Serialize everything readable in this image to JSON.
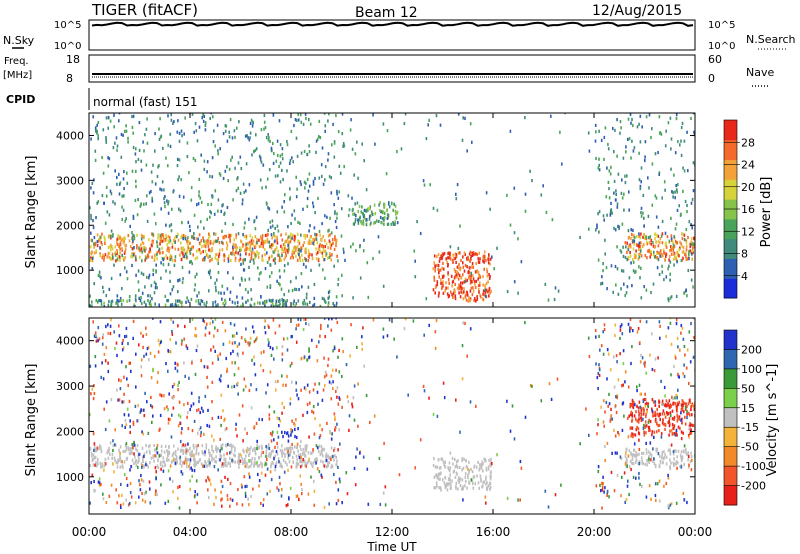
{
  "header": {
    "title": "TIGER (fitACF)",
    "beam": "Beam 12",
    "date": "12/Aug/2015"
  },
  "nsky": {
    "label": "N.Sky",
    "right_label": "N.Search",
    "ticks": [
      "10^5",
      "10^0"
    ],
    "right_ticks": [
      "10^5",
      "10^0"
    ]
  },
  "freq": {
    "label": "Freq.",
    "unit": "[MHz]",
    "right_label": "Nave",
    "ticks": [
      "18",
      "8"
    ],
    "right_ticks": [
      "60",
      "0"
    ]
  },
  "cpid": {
    "label": "CPID",
    "text": "normal (fast) 151"
  },
  "chart_data": [
    {
      "type": "heatmap",
      "name": "power",
      "x": [
        0,
        4,
        8,
        12,
        16,
        20,
        24
      ],
      "xticks": [
        "00:00",
        "04:00",
        "08:00",
        "12:00",
        "16:00",
        "20:00",
        "00:00"
      ],
      "xlabel": "Time UT",
      "ylabel": "Slant Range [km]",
      "ylim": [
        180,
        4500
      ],
      "yticks": [
        1000,
        2000,
        3000,
        4000
      ],
      "colorbar": {
        "label": "Power [dB]",
        "ticks": [
          4,
          8,
          12,
          16,
          20,
          24,
          28
        ],
        "range": [
          0,
          32
        ],
        "colors": [
          "#1a2dd8",
          "#2f5fb0",
          "#3f8a7a",
          "#4aa35a",
          "#86c34a",
          "#d6d23a",
          "#f3a23a",
          "#f36a2a",
          "#e8281a"
        ]
      },
      "features": [
        {
          "t": [
            0.0,
            9.8
          ],
          "r": [
            1200,
            1800
          ],
          "level": 24
        },
        {
          "t": [
            0.0,
            9.8
          ],
          "r": [
            180,
            320
          ],
          "level": 10
        },
        {
          "t": [
            13.6,
            15.9
          ],
          "r": [
            300,
            1400
          ],
          "level": 28
        },
        {
          "t": [
            21.2,
            24.0
          ],
          "r": [
            1200,
            1800
          ],
          "level": 24
        },
        {
          "t": [
            10.4,
            12.2
          ],
          "r": [
            2000,
            2500
          ],
          "level": 12
        }
      ]
    },
    {
      "type": "heatmap",
      "name": "velocity",
      "x": [
        0,
        4,
        8,
        12,
        16,
        20,
        24
      ],
      "xticks": [
        "00:00",
        "04:00",
        "08:00",
        "12:00",
        "16:00",
        "20:00",
        "00:00"
      ],
      "xlabel": "Time UT",
      "ylabel": "Slant Range [km]",
      "ylim": [
        180,
        4500
      ],
      "yticks": [
        1000,
        2000,
        3000,
        4000
      ],
      "colorbar": {
        "label": "Velocity [m s^-1]",
        "ticks": [
          "200",
          "100",
          "50",
          "15",
          "-15",
          "-50",
          "-100",
          "-200"
        ],
        "colors": [
          "#2233cc",
          "#2f66b2",
          "#3a9a3a",
          "#7ad04a",
          "#c0c0c0",
          "#f3b33a",
          "#f38a2a",
          "#f3552a",
          "#e8201a"
        ]
      },
      "features": [
        {
          "t": [
            0.0,
            9.8
          ],
          "r": [
            1200,
            1700
          ],
          "v": 0
        },
        {
          "t": [
            7.6,
            8.2
          ],
          "r": [
            1850,
            2050
          ],
          "v": 220
        },
        {
          "t": [
            13.6,
            15.9
          ],
          "r": [
            700,
            1400
          ],
          "v": 0
        },
        {
          "t": [
            21.4,
            24.0
          ],
          "r": [
            1900,
            2700
          ],
          "v": -200
        },
        {
          "t": [
            21.2,
            24.0
          ],
          "r": [
            1200,
            1600
          ],
          "v": 0
        }
      ]
    }
  ]
}
